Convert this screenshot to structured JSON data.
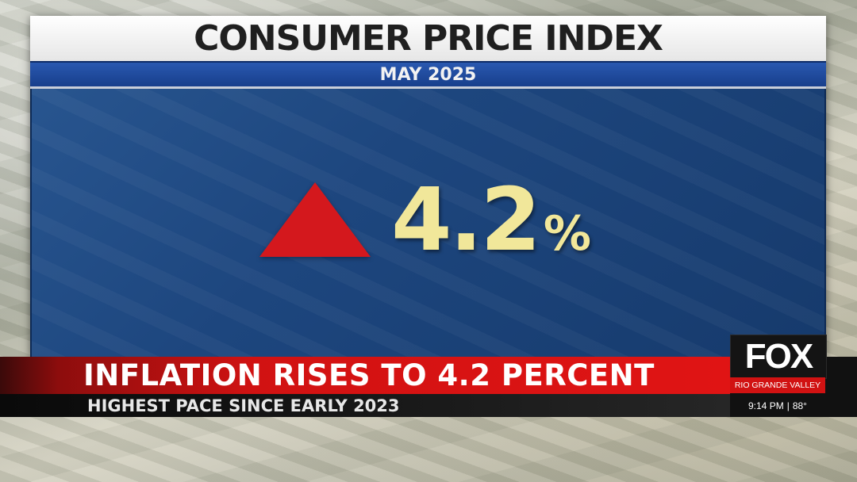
{
  "graphic": {
    "title": "CONSUMER PRICE INDEX",
    "date": "MAY 2025",
    "value": "4.2",
    "unit": "%",
    "direction": "up",
    "colors": {
      "arrow": "#d4181d",
      "value": "#f1e79a",
      "date_bar": "#1f4a9c"
    }
  },
  "lower_third": {
    "headline": "INFLATION RISES TO 4.2 PERCENT",
    "subheadline": "HIGHEST PACE SINCE EARLY 2023",
    "colors": {
      "headline_bar": "#e01414",
      "subhead_bar": "#1a1a1a"
    }
  },
  "station": {
    "logo": "FOX",
    "name": "RIO GRANDE VALLEY",
    "time": "9:14 PM",
    "separator": "|",
    "temperature": "88°"
  }
}
